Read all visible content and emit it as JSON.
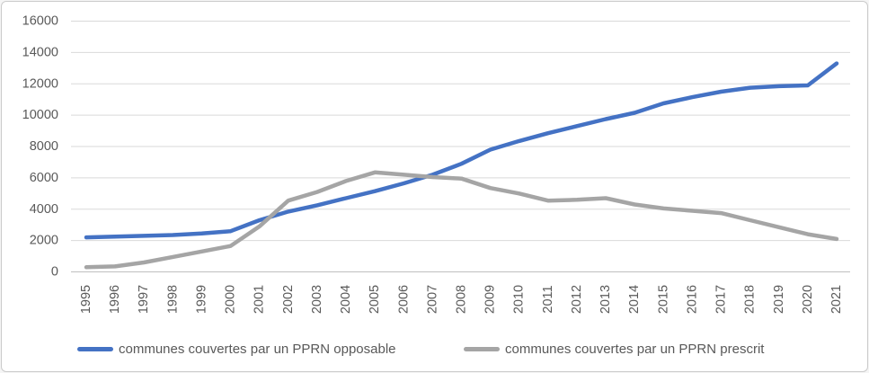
{
  "chart_data": {
    "type": "line",
    "x": [
      "1995",
      "1996",
      "1997",
      "1998",
      "1999",
      "2000",
      "2001",
      "2002",
      "2003",
      "2004",
      "2005",
      "2006",
      "2007",
      "2008",
      "2009",
      "2010",
      "2011",
      "2012",
      "2013",
      "2014",
      "2015",
      "2016",
      "2017",
      "2018",
      "2019",
      "2020",
      "2021"
    ],
    "series": [
      {
        "name": "communes couvertes par un PPRN opposable",
        "color": "#4472C4",
        "values": [
          2200,
          2250,
          2300,
          2350,
          2450,
          2600,
          3300,
          3850,
          4250,
          4700,
          5150,
          5650,
          6200,
          6900,
          7800,
          8350,
          8850,
          9300,
          9750,
          10150,
          10750,
          11150,
          11500,
          11750,
          11850,
          11900,
          13300
        ]
      },
      {
        "name": "communes couvertes par un PPRN prescrit",
        "color": "#A5A5A5",
        "values": [
          300,
          350,
          600,
          950,
          1300,
          1650,
          2900,
          4550,
          5100,
          5800,
          6350,
          6200,
          6050,
          5950,
          5350,
          5000,
          4550,
          4600,
          4700,
          4300,
          4050,
          3900,
          3750,
          3300,
          2850,
          2400,
          2100
        ]
      }
    ],
    "ylim": [
      0,
      16000
    ],
    "ytick_step": 2000,
    "yticks": [
      "0",
      "2000",
      "4000",
      "6000",
      "8000",
      "10000",
      "12000",
      "14000",
      "16000"
    ],
    "grid": "horizontal",
    "legend_position": "bottom",
    "xlabel": "",
    "ylabel": ""
  },
  "style_colors": {
    "gridline": "#D9D9D9",
    "axis_line": "#BFBFBF",
    "tick_text": "#595959",
    "border": "#CBCBCB",
    "background": "#FFFFFF"
  }
}
